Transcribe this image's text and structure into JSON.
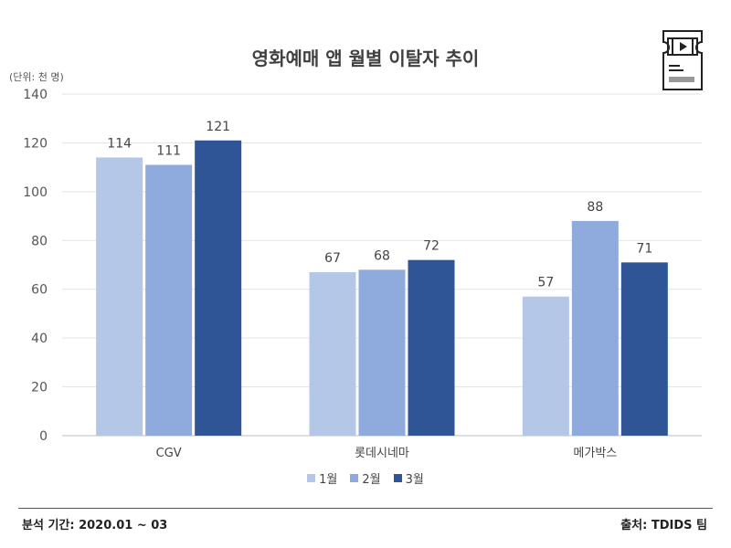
{
  "chart_data": {
    "type": "bar",
    "title": "영화예매 앱 월별 이탈자 추이",
    "unit_label": "(단위: 천 명)",
    "categories": [
      "CGV",
      "롯데시네마",
      "메가박스"
    ],
    "series": [
      {
        "name": "1월",
        "values": [
          114,
          67,
          57
        ],
        "color": "#b4c7e7"
      },
      {
        "name": "2월",
        "values": [
          111,
          68,
          88
        ],
        "color": "#8faadc"
      },
      {
        "name": "3월",
        "values": [
          121,
          72,
          71
        ],
        "color": "#2f5597"
      }
    ],
    "ylim": [
      0,
      140
    ],
    "yticks": [
      0,
      20,
      40,
      60,
      80,
      100,
      120,
      140
    ],
    "grid": true,
    "legend_position": "bottom"
  },
  "footer": {
    "period": "분석 기간: 2020.01 ~ 03",
    "source": "출처: TDIDS 팀"
  },
  "icons": {
    "ticket": "movie-ticket-icon"
  }
}
